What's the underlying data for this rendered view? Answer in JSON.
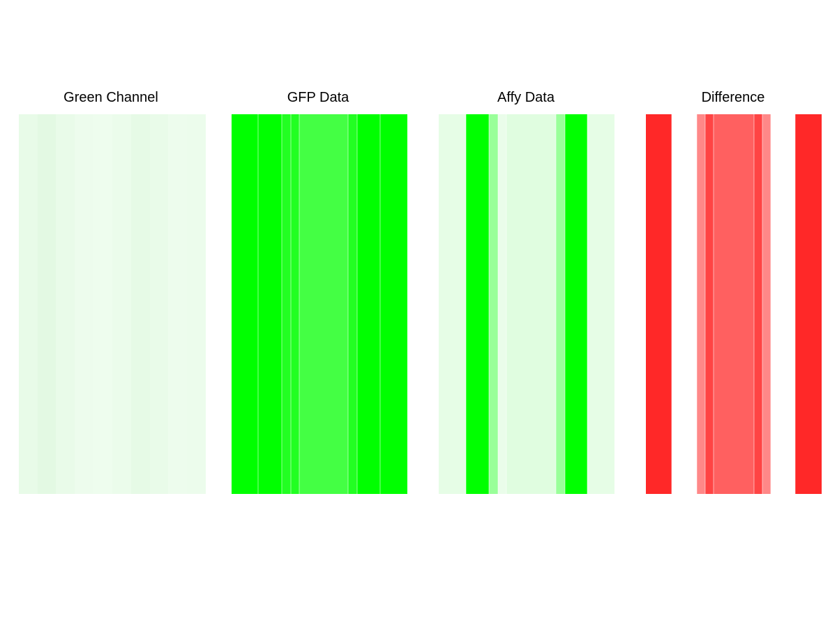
{
  "chart_data": [
    {
      "type": "heatmap",
      "title": "Green Channel",
      "columns": [
        {
          "color": "#e8fbe8"
        },
        {
          "color": "#e3f9e3"
        },
        {
          "color": "#e9fbe9"
        },
        {
          "color": "#edfced"
        },
        {
          "color": "#eefdee"
        },
        {
          "color": "#ebfceb"
        },
        {
          "color": "#e6fae6"
        },
        {
          "color": "#e9fbe9"
        },
        {
          "color": "#edfced"
        },
        {
          "color": "#ecfcec"
        }
      ]
    },
    {
      "type": "heatmap",
      "title": "GFP Data",
      "columns": [
        {
          "color": "#00ff00"
        },
        {
          "color": "#00ff00"
        },
        {
          "color": "#22ff22"
        },
        {
          "color": "#22ff22"
        },
        {
          "color": "#44ff44"
        },
        {
          "color": "#22ff22"
        },
        {
          "color": "#00ff00"
        },
        {
          "color": "#00ff00"
        }
      ]
    },
    {
      "type": "heatmap",
      "title": "Affy Data",
      "columns": [
        {
          "color": "#e6fde6"
        },
        {
          "color": "#00ff00"
        },
        {
          "color": "#99ff99"
        },
        {
          "color": "#eafdea"
        },
        {
          "color": "#e0fde0"
        },
        {
          "color": "#99ff99"
        },
        {
          "color": "#00ff00"
        },
        {
          "color": "#e6fde6"
        }
      ]
    },
    {
      "type": "heatmap",
      "title": "Difference",
      "columns": [
        {
          "color": "#ff2828"
        },
        {
          "color": "#ffffff"
        },
        {
          "color": "#ff8888"
        },
        {
          "color": "#ff4444"
        },
        {
          "color": "#ff6060"
        },
        {
          "color": "#ff4444"
        },
        {
          "color": "#ff8888"
        },
        {
          "color": "#ffffff"
        },
        {
          "color": "#ff2828"
        }
      ]
    }
  ]
}
